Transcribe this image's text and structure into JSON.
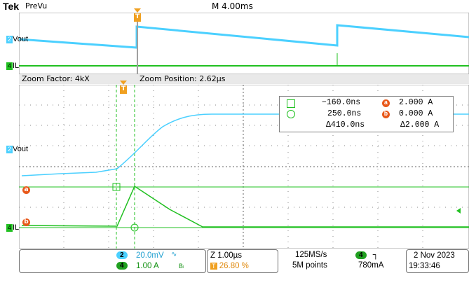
{
  "header": {
    "brand": "Tek",
    "mode": "PreVu",
    "timebase": "M 4.00ms"
  },
  "overview": {
    "ch2_label": "Vout",
    "ch4_label": "IL",
    "ch2_num": "2",
    "ch4_num": "4",
    "trigger_marker": "T"
  },
  "zoom": {
    "factor": "Zoom Factor: 4kX",
    "position": "Zoom Position: 2.62µs"
  },
  "main": {
    "ch2_label": "Vout",
    "ch4_label": "IL",
    "ch2_num": "2",
    "ch4_num": "4",
    "cursor_a": "a",
    "cursor_b": "b",
    "trigger_marker": "T"
  },
  "readout": {
    "row1_time": "−160.0ns",
    "row1_val": "2.000 A",
    "row1_cursor": "a",
    "row2_time": "250.0ns",
    "row2_val": "0.000 A",
    "row2_cursor": "b",
    "delta_time": "Δ410.0ns",
    "delta_val": "Δ2.000 A"
  },
  "status": {
    "ch2_num": "2",
    "ch2_scale": "20.0mV",
    "ch2_coupling": "∿",
    "ch4_num": "4",
    "ch4_scale": "1.00 A",
    "bw_flag": "Bₗ",
    "zoom_time": "Z 1.00µs",
    "trigger_pos": "26.80 %",
    "sample_rate": "125MS/s",
    "record_len": "5M points",
    "trig_src": "4",
    "trig_slope": "┐",
    "trig_level": "780mA",
    "date": "2 Nov 2023",
    "time": "19:33:46"
  },
  "colors": {
    "ch2": "#4bd0ff",
    "ch4": "#20c020",
    "cursor": "#e8581a",
    "grid": "#888888"
  }
}
